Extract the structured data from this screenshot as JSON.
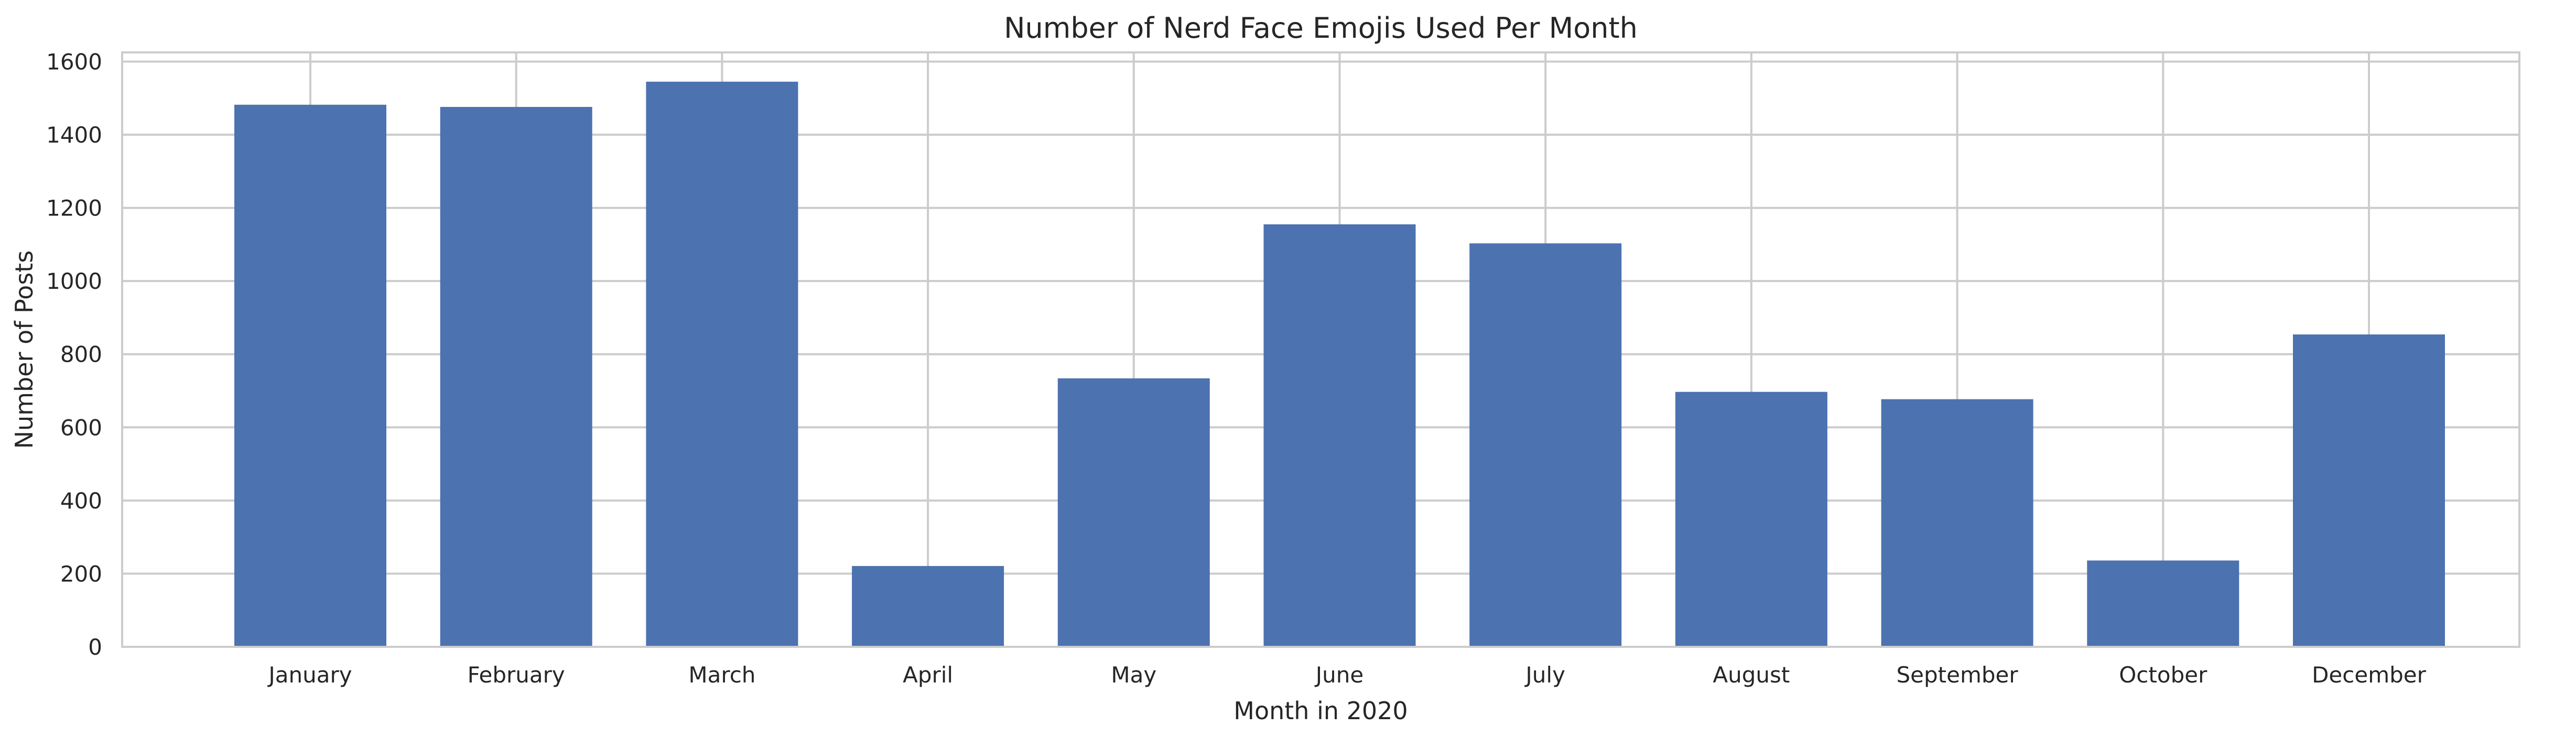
{
  "chart_data": {
    "type": "bar",
    "title": "Number of Nerd Face Emojis Used Per Month",
    "xlabel": "Month in 2020",
    "ylabel": "Number of Posts",
    "categories": [
      "January",
      "February",
      "March",
      "April",
      "May",
      "June",
      "July",
      "August",
      "September",
      "October",
      "December"
    ],
    "values": [
      1482,
      1476,
      1545,
      221,
      734,
      1155,
      1103,
      697,
      677,
      236,
      854
    ],
    "ylim": [
      0,
      1625
    ],
    "yticks": [
      0,
      200,
      400,
      600,
      800,
      1000,
      1200,
      1400,
      1600
    ],
    "grid": true,
    "legend": "none",
    "colors": {
      "bar": "#4c72b0",
      "grid": "#cccccc",
      "text": "#262626",
      "background": "#ffffff"
    }
  }
}
